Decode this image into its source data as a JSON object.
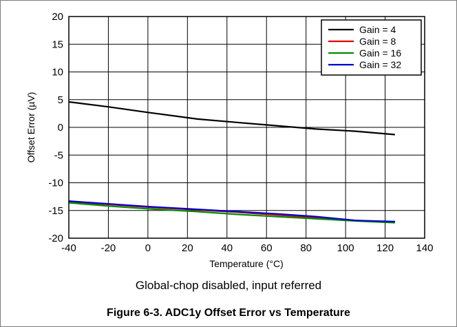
{
  "chart_data": {
    "type": "line",
    "title": "",
    "xlabel": "Temperature (°C)",
    "ylabel": "Offset Error (µV)",
    "xlim": [
      -40,
      140
    ],
    "ylim": [
      -20,
      20
    ],
    "x_ticks": [
      "-40",
      "-20",
      "0",
      "20",
      "40",
      "60",
      "80",
      "100",
      "120",
      "140"
    ],
    "y_ticks": [
      "20",
      "15",
      "10",
      "5",
      "0",
      "-5",
      "-10",
      "-15",
      "-20"
    ],
    "grid": true,
    "legend_position": "top-right",
    "series": [
      {
        "name": "Gain = 4",
        "color": "#000000",
        "x": [
          -40,
          -20,
          0,
          25,
          45,
          65,
          85,
          105,
          125
        ],
        "y": [
          4.6,
          3.7,
          2.7,
          1.5,
          0.9,
          0.3,
          -0.3,
          -0.7,
          -1.3
        ]
      },
      {
        "name": "Gain = 8",
        "color": "#e00000",
        "x": [
          -40,
          -20,
          0,
          25,
          45,
          65,
          85,
          105,
          125
        ],
        "y": [
          -13.5,
          -13.9,
          -14.4,
          -14.9,
          -15.3,
          -15.8,
          -16.3,
          -16.8,
          -17.1
        ]
      },
      {
        "name": "Gain = 16",
        "color": "#008c00",
        "x": [
          -40,
          -20,
          0,
          25,
          45,
          65,
          85,
          105,
          125
        ],
        "y": [
          -13.6,
          -14.2,
          -14.7,
          -15.2,
          -15.7,
          -16.1,
          -16.5,
          -16.9,
          -17.2
        ]
      },
      {
        "name": "Gain = 32",
        "color": "#0000cc",
        "x": [
          -40,
          -20,
          0,
          25,
          45,
          65,
          85,
          105,
          125
        ],
        "y": [
          -13.3,
          -13.8,
          -14.3,
          -14.8,
          -15.2,
          -15.6,
          -16.1,
          -16.8,
          -17.0
        ]
      }
    ]
  },
  "captions": {
    "subtitle": "Global-chop disabled, input referred",
    "figure": "Figure 6-3. ADC1y Offset Error vs Temperature"
  }
}
